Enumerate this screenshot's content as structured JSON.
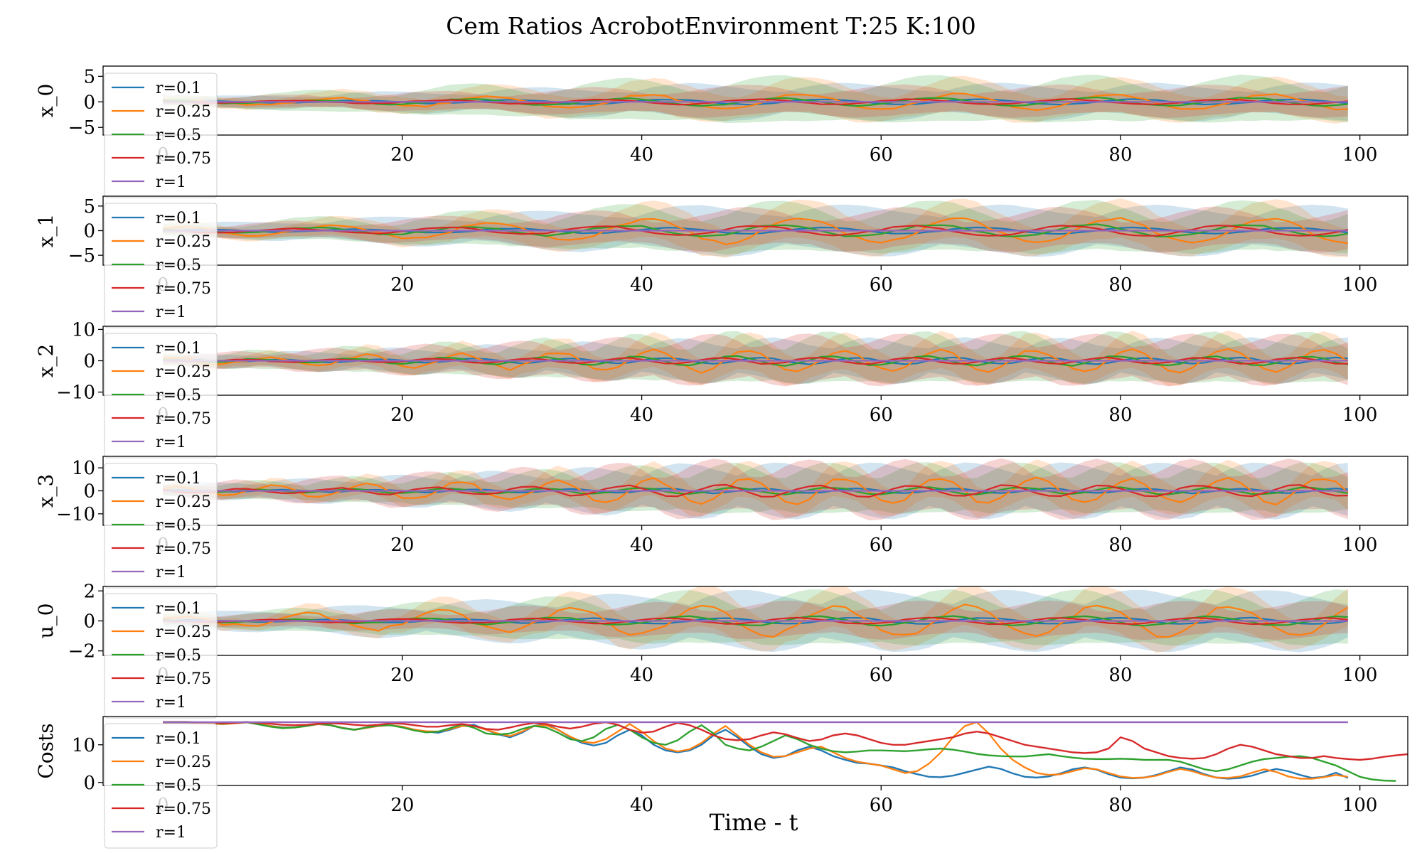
{
  "title": "Cem Ratios AcrobotEnvironment T:25 K:100",
  "xlabel": "Time - t",
  "colors": {
    "r=0.1": "#1f77b4",
    "r=0.25": "#ff7f0e",
    "r=0.5": "#2ca02c",
    "r=0.75": "#d62728",
    "r=1": "#9467bd"
  },
  "chart_data": [
    {
      "type": "line",
      "ylabel": "x_0",
      "xlim": [
        -5,
        104
      ],
      "ylim": [
        -6.5,
        7
      ],
      "xticks": [
        0,
        20,
        40,
        60,
        80,
        100
      ],
      "yticks": [
        -5,
        0,
        5
      ],
      "legend": [
        "r=0.1",
        "r=0.25",
        "r=0.5",
        "r=0.75",
        "r=1"
      ],
      "legend_loc": "upper left",
      "mean_amp": {
        "r=0.1": 0.5,
        "r=0.25": 1.5,
        "r=0.5": 0.8,
        "r=0.75": 0.5,
        "r=1": 0.0
      },
      "band_amp": {
        "r=0.1": 3.5,
        "r=0.25": 3.5,
        "r=0.5": 4.5,
        "r=0.75": 3.0,
        "r=1": 0.0
      },
      "period": 13
    },
    {
      "type": "line",
      "ylabel": "x_1",
      "xlim": [
        -5,
        104
      ],
      "ylim": [
        -7,
        7
      ],
      "xticks": [
        0,
        20,
        40,
        60,
        80,
        100
      ],
      "yticks": [
        -5,
        0,
        5
      ],
      "legend": [
        "r=0.1",
        "r=0.25",
        "r=0.5",
        "r=0.75",
        "r=1"
      ],
      "legend_loc": "upper left",
      "mean_amp": {
        "r=0.1": 0.6,
        "r=0.25": 2.5,
        "r=0.5": 1.2,
        "r=0.75": 1.0,
        "r=1": 0.0
      },
      "band_amp": {
        "r=0.1": 5.0,
        "r=0.25": 4.0,
        "r=0.5": 5.0,
        "r=0.75": 4.0,
        "r=1": 0.0
      },
      "period": 13
    },
    {
      "type": "line",
      "ylabel": "x_2",
      "xlim": [
        -5,
        104
      ],
      "ylim": [
        -11,
        11
      ],
      "xticks": [
        0,
        20,
        40,
        60,
        80,
        100
      ],
      "yticks": [
        -10,
        0,
        10
      ],
      "legend": [
        "r=0.1",
        "r=0.25",
        "r=0.5",
        "r=0.75",
        "r=1"
      ],
      "legend_loc": "upper left",
      "mean_amp": {
        "r=0.1": 1.0,
        "r=0.25": 3.5,
        "r=0.5": 1.5,
        "r=0.75": 1.0,
        "r=1": 0.0
      },
      "band_amp": {
        "r=0.1": 7.0,
        "r=0.25": 6.0,
        "r=0.5": 8.0,
        "r=0.75": 8.0,
        "r=1": 0.0
      },
      "period": 8
    },
    {
      "type": "line",
      "ylabel": "x_3",
      "xlim": [
        -5,
        104
      ],
      "ylim": [
        -15,
        15
      ],
      "xticks": [
        0,
        20,
        40,
        60,
        80,
        100
      ],
      "yticks": [
        -10,
        0,
        10
      ],
      "legend": [
        "r=0.1",
        "r=0.25",
        "r=0.5",
        "r=0.75",
        "r=1"
      ],
      "legend_loc": "upper left",
      "mean_amp": {
        "r=0.1": 1.0,
        "r=0.25": 5.5,
        "r=0.5": 1.5,
        "r=0.75": 2.5,
        "r=1": 0.0
      },
      "band_amp": {
        "r=0.1": 12.0,
        "r=0.25": 8.0,
        "r=0.5": 11.0,
        "r=0.75": 12.0,
        "r=1": 0.0
      },
      "period": 8
    },
    {
      "type": "line",
      "ylabel": "u_0",
      "xlim": [
        -5,
        104
      ],
      "ylim": [
        -2.3,
        2.3
      ],
      "xticks": [
        0,
        20,
        40,
        60,
        80,
        100
      ],
      "yticks": [
        -2,
        0,
        2
      ],
      "legend": [
        "r=0.1",
        "r=0.25",
        "r=0.5",
        "r=0.75",
        "r=1"
      ],
      "legend_loc": "upper left",
      "mean_amp": {
        "r=0.1": 0.2,
        "r=0.25": 1.0,
        "r=0.5": 0.3,
        "r=0.75": 0.2,
        "r=1": 0.0
      },
      "band_amp": {
        "r=0.1": 2.0,
        "r=0.25": 1.4,
        "r=0.5": 1.8,
        "r=0.75": 1.2,
        "r=1": 0.0
      },
      "period": 11
    },
    {
      "type": "line",
      "ylabel": "Costs",
      "xlim": [
        -5,
        104
      ],
      "ylim": [
        -0.8,
        17.5
      ],
      "xticks": [
        0,
        20,
        40,
        60,
        80,
        100
      ],
      "yticks": [
        0,
        10
      ],
      "legend": [
        "r=0.1",
        "r=0.25",
        "r=0.5",
        "r=0.75",
        "r=1"
      ],
      "legend_loc": "upper left",
      "series": [
        {
          "name": "r=0.1",
          "y": [
            16,
            16,
            16,
            15.8,
            15.7,
            15.6,
            15.8,
            16,
            15.5,
            15,
            14.6,
            14.6,
            15,
            15.5,
            15.2,
            14.5,
            14,
            14.5,
            15,
            15.2,
            14.8,
            14,
            13.5,
            13.2,
            14,
            15,
            15.3,
            14,
            12.8,
            12,
            13.2,
            15,
            15.5,
            14,
            12,
            10.5,
            9.8,
            10.5,
            12.5,
            14,
            12.5,
            10,
            8.5,
            8,
            8.5,
            10,
            12.5,
            14,
            12,
            9.5,
            7.5,
            6.5,
            7,
            8.5,
            9.5,
            8.5,
            7,
            6,
            5.2,
            5,
            4.5,
            4,
            3,
            2.2,
            1.5,
            1.4,
            1.8,
            2.6,
            3.4,
            4.2,
            3.6,
            2.4,
            1.5,
            1.3,
            1.6,
            2.4,
            3.5,
            4,
            3.4,
            2.2,
            1.3,
            1.1,
            1.3,
            2,
            3,
            4,
            3.4,
            2.2,
            1.3,
            1,
            1.2,
            1.8,
            2.8,
            3.6,
            3,
            2,
            1.2,
            1.5,
            2.6,
            1.2
          ]
        },
        {
          "name": "r=0.25",
          "y": [
            16,
            16,
            16,
            15.8,
            15.6,
            15.5,
            15.7,
            16,
            15.5,
            15,
            14.5,
            14.6,
            15,
            15.5,
            15.2,
            14.5,
            14,
            14.5,
            15,
            15.2,
            14.8,
            14,
            13.6,
            13.5,
            14.2,
            15,
            15,
            14,
            13,
            12.3,
            13.5,
            15,
            15.2,
            14,
            12.2,
            10.8,
            10.5,
            11.5,
            13.5,
            15.5,
            13.5,
            11,
            9,
            8.2,
            8.8,
            10.5,
            13,
            15,
            12.5,
            10,
            8,
            6.8,
            7,
            8,
            9,
            9.5,
            8,
            6.5,
            5.5,
            5,
            4.5,
            3.5,
            2.5,
            3,
            5,
            8,
            12,
            15,
            16,
            13,
            9,
            6,
            4,
            2.5,
            2,
            2.2,
            3,
            3.8,
            3.5,
            2.5,
            1.6,
            1.2,
            1.3,
            1.8,
            2.8,
            3.6,
            3,
            2,
            1.3,
            1.2,
            1.6,
            2.6,
            3.5,
            2.8,
            1.6,
            1,
            1,
            1.4,
            2,
            1.5
          ]
        },
        {
          "name": "r=0.5",
          "y": [
            16,
            16,
            16,
            15.8,
            15.7,
            15.6,
            15.8,
            16,
            15.4,
            14.8,
            14.4,
            14.6,
            15,
            15.6,
            15.2,
            14.4,
            14,
            14.6,
            15.1,
            15.2,
            14.6,
            13.8,
            13.3,
            13.5,
            14.4,
            15.4,
            14.5,
            13,
            12.7,
            13,
            14.2,
            15,
            14.6,
            13.2,
            11.5,
            11,
            12,
            14.2,
            15.3,
            14,
            12,
            10.5,
            10,
            11.2,
            13.5,
            15.2,
            13,
            10,
            9,
            8.5,
            9.5,
            11,
            12.5,
            11.5,
            10,
            9,
            8.3,
            8,
            8.2,
            8.5,
            8.5,
            8.4,
            8.3,
            8.5,
            8.8,
            9,
            8.7,
            8.2,
            7.6,
            7.2,
            7,
            6.9,
            6.9,
            7.2,
            7.5,
            7,
            6.6,
            6.3,
            6.2,
            6.2,
            6.3,
            6.2,
            6,
            6,
            6,
            5.5,
            4.5,
            3.5,
            3,
            3.5,
            4.5,
            5.5,
            6.2,
            6.5,
            6.8,
            7,
            6.5,
            5.5,
            4.5,
            3,
            1.5,
            0.8,
            0.5,
            0.4
          ]
        },
        {
          "name": "r=0.75",
          "y": [
            16,
            16,
            16,
            15.9,
            15.8,
            15.7,
            15.8,
            16,
            15.8,
            15.6,
            15.3,
            15.2,
            15.3,
            15.6,
            15.7,
            15.6,
            15.3,
            15.1,
            15.3,
            15.7,
            15.6,
            15.2,
            14.8,
            14.8,
            15.2,
            15.5,
            15,
            14.2,
            14,
            14.6,
            15.3,
            15.8,
            15.5,
            14.8,
            14.3,
            14.8,
            15.6,
            16,
            15.3,
            14,
            13.2,
            13.5,
            14.8,
            15.8,
            15.2,
            14,
            12.5,
            11.5,
            11.2,
            11.5,
            12.5,
            13.3,
            12.8,
            11.8,
            11,
            11.4,
            12.5,
            13,
            12.5,
            11.5,
            10.5,
            10,
            10,
            10.5,
            11,
            11.5,
            12,
            13,
            13.5,
            13,
            12,
            11,
            10,
            9.5,
            9,
            8.5,
            8,
            7.8,
            8,
            9,
            12,
            11,
            9,
            8,
            7,
            6.5,
            6.3,
            6.5,
            7.5,
            9,
            10,
            9.5,
            8.5,
            7.5,
            7,
            6.5,
            6.5,
            7,
            6.5,
            6.2,
            6,
            6.3,
            6.8,
            7.2,
            7.5,
            7.8
          ]
        },
        {
          "name": "r=1",
          "y": [
            16,
            16,
            16,
            16,
            16,
            16,
            16,
            16,
            16,
            16,
            16,
            16,
            16,
            16,
            16,
            16,
            16,
            16,
            16,
            16,
            16,
            16,
            16,
            16,
            16,
            16,
            16,
            16,
            16,
            16,
            16,
            16,
            16,
            16,
            16,
            16,
            16,
            16,
            16,
            16,
            16,
            16,
            16,
            16,
            16,
            16,
            16,
            16,
            16,
            16,
            16,
            16,
            16,
            16,
            16,
            16,
            16,
            16,
            16,
            16,
            16,
            16,
            16,
            16,
            16,
            16,
            16,
            16,
            16,
            16,
            16,
            16,
            16,
            16,
            16,
            16,
            16,
            16,
            16,
            16,
            16,
            16,
            16,
            16,
            16,
            16,
            16,
            16,
            16,
            16,
            16,
            16,
            16,
            16,
            16,
            16,
            16,
            16,
            16,
            16
          ]
        }
      ]
    }
  ]
}
